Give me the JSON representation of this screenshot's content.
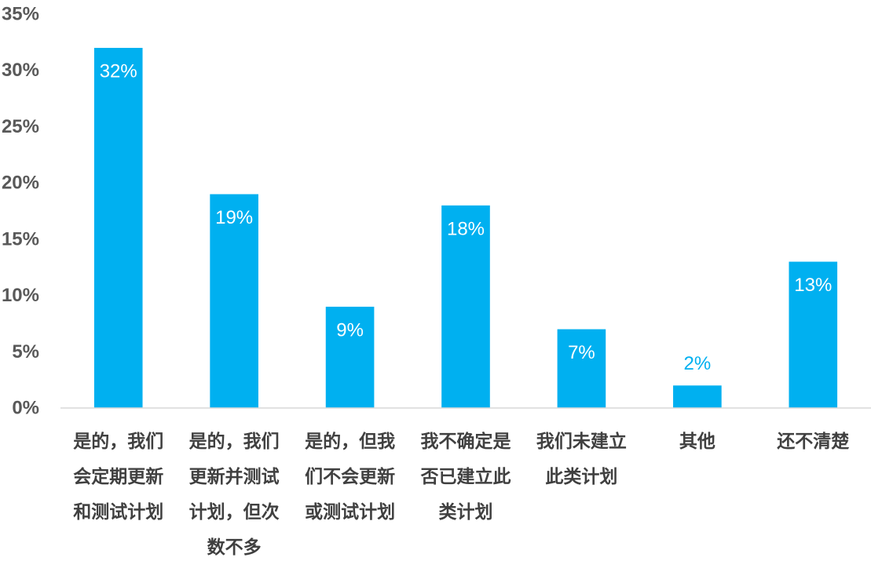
{
  "chart_data": {
    "type": "bar",
    "categories": [
      "是的，我们会定期更新和测试计划",
      "是的，我们更新并测试计划，但次数不多",
      "是的，但我们不会更新或测试计划",
      "我不确定是否已建立此类计划",
      "我们未建立此类计划",
      "其他",
      "还不清楚"
    ],
    "values": [
      32,
      19,
      9,
      18,
      7,
      2,
      13
    ],
    "data_labels": [
      "32%",
      "19%",
      "9%",
      "18%",
      "7%",
      "2%",
      "13%"
    ],
    "ylim": [
      0,
      35
    ],
    "yticks": [
      0,
      5,
      10,
      15,
      20,
      25,
      30,
      35
    ],
    "ytick_labels": [
      "0%",
      "5%",
      "10%",
      "15%",
      "20%",
      "25%",
      "30%",
      "35%"
    ],
    "grid": false,
    "legend": "none"
  },
  "colors": {
    "background": "#FFFFFF",
    "bar": "#00B0F0",
    "data_label_inside": "#FFFFFF",
    "data_label_outside": "#00B0F0",
    "axis_line": "#D9D9D9",
    "tick_label": "#595959",
    "category_label": "#404040"
  }
}
